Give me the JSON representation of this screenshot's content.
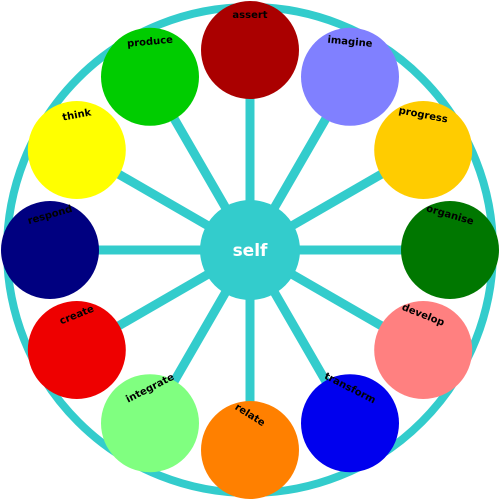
{
  "center": {
    "label": "self",
    "color": "#33cccc"
  },
  "rim_color": "#33cccc",
  "spoke_color": "#33cccc",
  "nodes": [
    {
      "label": "assert",
      "color": "#aa0000",
      "text_color": "#ffffff"
    },
    {
      "label": "imagine",
      "color": "#8080ff",
      "text_color": "#ffffff"
    },
    {
      "label": "progress",
      "color": "#ffcc00",
      "text_color": "#000000"
    },
    {
      "label": "organise",
      "color": "#007700",
      "text_color": "#ffffff"
    },
    {
      "label": "develop",
      "color": "#ff8080",
      "text_color": "#000000"
    },
    {
      "label": "transform",
      "color": "#0000ee",
      "text_color": "#ffffff"
    },
    {
      "label": "relate",
      "color": "#ff8000",
      "text_color": "#000000"
    },
    {
      "label": "integrate",
      "color": "#80ff80",
      "text_color": "#000000"
    },
    {
      "label": "create",
      "color": "#ee0000",
      "text_color": "#ffffff"
    },
    {
      "label": "respond",
      "color": "#000080",
      "text_color": "#ffffff"
    },
    {
      "label": "think",
      "color": "#ffff00",
      "text_color": "#000000"
    },
    {
      "label": "produce",
      "color": "#00cc00",
      "text_color": "#000000"
    }
  ]
}
